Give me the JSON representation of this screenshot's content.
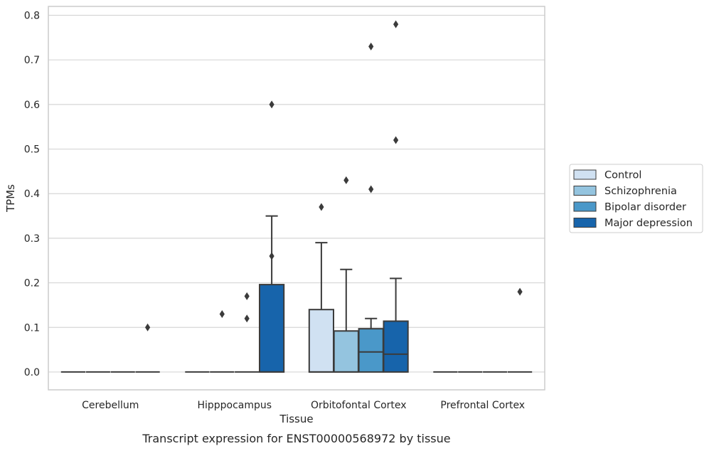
{
  "chart_data": {
    "type": "box",
    "title": "",
    "caption": "Transcript expression for ENST00000568972 by tissue",
    "xlabel": "Tissue",
    "ylabel": "TPMs",
    "ylim": [
      -0.04,
      0.82
    ],
    "yticks": [
      0.0,
      0.1,
      0.2,
      0.3,
      0.4,
      0.5,
      0.6,
      0.7,
      0.8
    ],
    "ytick_labels": [
      "0.0",
      "0.1",
      "0.2",
      "0.3",
      "0.4",
      "0.5",
      "0.6",
      "0.7",
      "0.8"
    ],
    "grid": "horizontal",
    "legend_position": "right",
    "categories": [
      "Cerebellum",
      "Hipppocampus",
      "Orbitofontal Cortex",
      "Prefrontal Cortex"
    ],
    "series": [
      {
        "name": "Control",
        "color": "#d0e1f2",
        "boxes": [
          {
            "q1": 0,
            "median": 0,
            "q3": 0,
            "whisker_low": 0,
            "whisker_high": 0,
            "outliers": []
          },
          {
            "q1": 0,
            "median": 0,
            "q3": 0,
            "whisker_low": 0,
            "whisker_high": 0,
            "outliers": []
          },
          {
            "q1": 0,
            "median": 0,
            "q3": 0.14,
            "whisker_low": 0,
            "whisker_high": 0.29,
            "outliers": [
              0.37
            ]
          },
          {
            "q1": 0,
            "median": 0,
            "q3": 0,
            "whisker_low": 0,
            "whisker_high": 0,
            "outliers": []
          }
        ]
      },
      {
        "name": "Schizophrenia",
        "color": "#94c4df",
        "boxes": [
          {
            "q1": 0,
            "median": 0,
            "q3": 0,
            "whisker_low": 0,
            "whisker_high": 0,
            "outliers": []
          },
          {
            "q1": 0,
            "median": 0,
            "q3": 0,
            "whisker_low": 0,
            "whisker_high": 0,
            "outliers": [
              0.13
            ]
          },
          {
            "q1": 0,
            "median": 0,
            "q3": 0.092,
            "whisker_low": 0,
            "whisker_high": 0.23,
            "outliers": [
              0.43
            ]
          },
          {
            "q1": 0,
            "median": 0,
            "q3": 0,
            "whisker_low": 0,
            "whisker_high": 0,
            "outliers": []
          }
        ]
      },
      {
        "name": "Bipolar disorder",
        "color": "#4a98c9",
        "boxes": [
          {
            "q1": 0,
            "median": 0,
            "q3": 0,
            "whisker_low": 0,
            "whisker_high": 0,
            "outliers": []
          },
          {
            "q1": 0,
            "median": 0,
            "q3": 0,
            "whisker_low": 0,
            "whisker_high": 0,
            "outliers": [
              0.17,
              0.12
            ]
          },
          {
            "q1": 0,
            "median": 0.045,
            "q3": 0.097,
            "whisker_low": 0,
            "whisker_high": 0.12,
            "outliers": [
              0.73,
              0.41
            ]
          },
          {
            "q1": 0,
            "median": 0,
            "q3": 0,
            "whisker_low": 0,
            "whisker_high": 0,
            "outliers": []
          }
        ]
      },
      {
        "name": "Major depression",
        "color": "#1764ab",
        "boxes": [
          {
            "q1": 0,
            "median": 0,
            "q3": 0,
            "whisker_low": 0,
            "whisker_high": 0,
            "outliers": [
              0.1
            ]
          },
          {
            "q1": 0,
            "median": 0,
            "q3": 0.196,
            "whisker_low": 0,
            "whisker_high": 0.35,
            "outliers": [
              0.6,
              0.26
            ]
          },
          {
            "q1": 0,
            "median": 0.04,
            "q3": 0.114,
            "whisker_low": 0,
            "whisker_high": 0.21,
            "outliers": [
              0.78,
              0.52
            ]
          },
          {
            "q1": 0,
            "median": 0,
            "q3": 0,
            "whisker_low": 0,
            "whisker_high": 0,
            "outliers": [
              0.18
            ]
          }
        ]
      }
    ]
  }
}
